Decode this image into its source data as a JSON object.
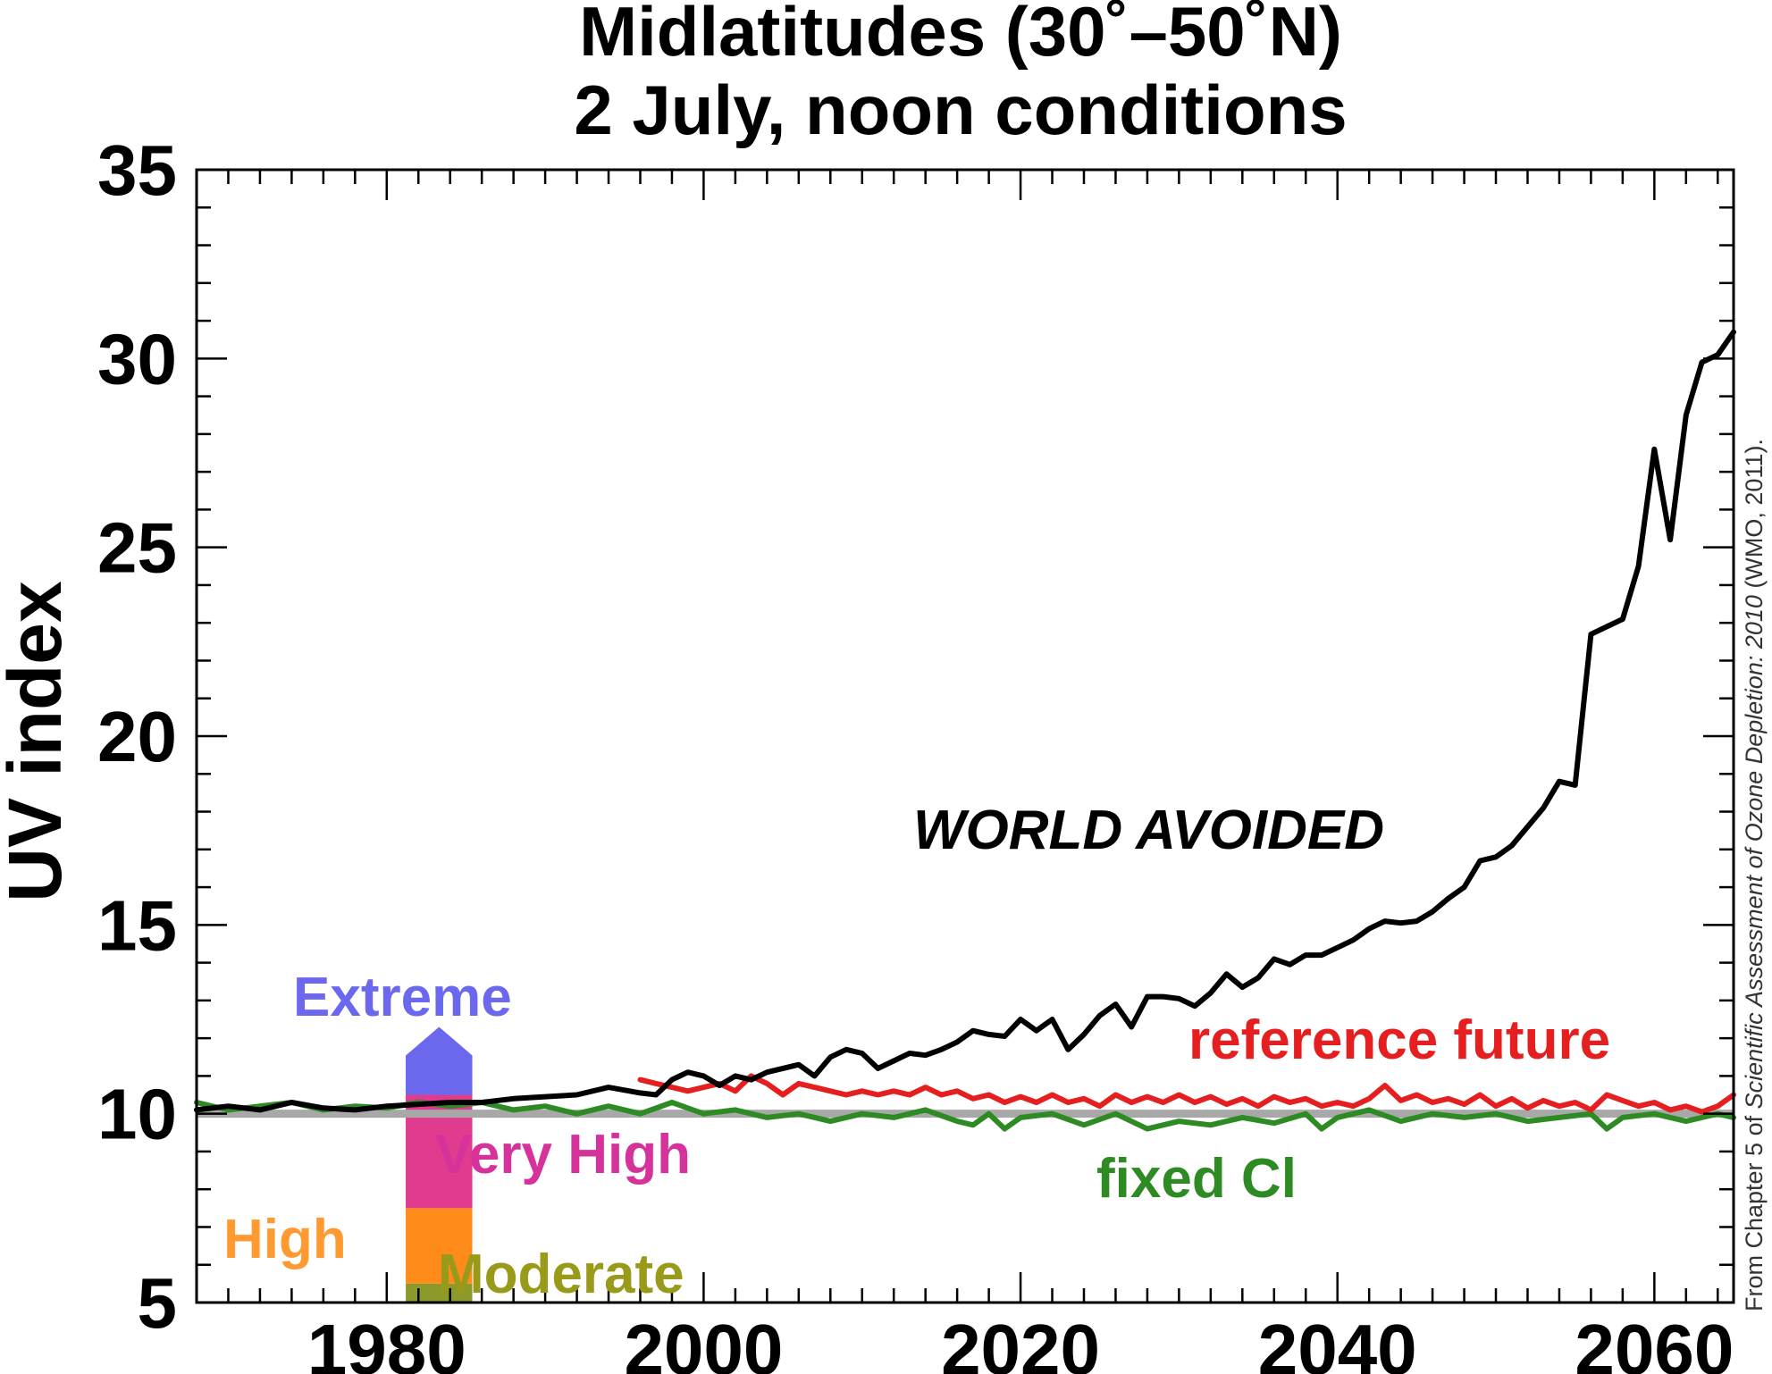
{
  "chart_data": {
    "type": "line",
    "title": "Midlatitudes (30˚–50˚N)",
    "subtitle": "2 July, noon conditions",
    "xlabel": "",
    "ylabel": "UV index",
    "xlim": [
      1968,
      2065
    ],
    "ylim": [
      5,
      35
    ],
    "xticks": [
      1980,
      2000,
      2020,
      2040,
      2060
    ],
    "yticks": [
      5,
      10,
      15,
      20,
      25,
      30,
      35
    ],
    "grid": false,
    "reference_line": {
      "y": 10,
      "color": "#a8a8a8"
    },
    "series": [
      {
        "name": "WORLD AVOIDED",
        "color": "#000000",
        "points": [
          [
            1968,
            10.1
          ],
          [
            1970,
            10.2
          ],
          [
            1972,
            10.1
          ],
          [
            1974,
            10.3
          ],
          [
            1976,
            10.15
          ],
          [
            1978,
            10.1
          ],
          [
            1980,
            10.2
          ],
          [
            1982,
            10.25
          ],
          [
            1984,
            10.3
          ],
          [
            1986,
            10.3
          ],
          [
            1988,
            10.4
          ],
          [
            1990,
            10.45
          ],
          [
            1992,
            10.5
          ],
          [
            1994,
            10.7
          ],
          [
            1996,
            10.55
          ],
          [
            1997,
            10.5
          ],
          [
            1998,
            10.9
          ],
          [
            1999,
            11.1
          ],
          [
            2000,
            11.0
          ],
          [
            2001,
            10.75
          ],
          [
            2002,
            11.0
          ],
          [
            2003,
            10.9
          ],
          [
            2004,
            11.1
          ],
          [
            2006,
            11.3
          ],
          [
            2007,
            11.0
          ],
          [
            2008,
            11.5
          ],
          [
            2009,
            11.7
          ],
          [
            2010,
            11.6
          ],
          [
            2011,
            11.2
          ],
          [
            2012,
            11.4
          ],
          [
            2013,
            11.6
          ],
          [
            2014,
            11.55
          ],
          [
            2015,
            11.7
          ],
          [
            2016,
            11.9
          ],
          [
            2017,
            12.2
          ],
          [
            2018,
            12.1
          ],
          [
            2019,
            12.05
          ],
          [
            2020,
            12.5
          ],
          [
            2021,
            12.2
          ],
          [
            2022,
            12.5
          ],
          [
            2023,
            11.7
          ],
          [
            2024,
            12.1
          ],
          [
            2025,
            12.6
          ],
          [
            2026,
            12.9
          ],
          [
            2027,
            12.3
          ],
          [
            2028,
            13.1
          ],
          [
            2029,
            13.1
          ],
          [
            2030,
            13.05
          ],
          [
            2031,
            12.85
          ],
          [
            2032,
            13.2
          ],
          [
            2033,
            13.7
          ],
          [
            2034,
            13.35
          ],
          [
            2035,
            13.6
          ],
          [
            2036,
            14.1
          ],
          [
            2037,
            13.95
          ],
          [
            2038,
            14.2
          ],
          [
            2039,
            14.2
          ],
          [
            2040,
            14.4
          ],
          [
            2041,
            14.6
          ],
          [
            2042,
            14.9
          ],
          [
            2043,
            15.1
          ],
          [
            2044,
            15.05
          ],
          [
            2045,
            15.1
          ],
          [
            2046,
            15.35
          ],
          [
            2047,
            15.7
          ],
          [
            2048,
            16.0
          ],
          [
            2049,
            16.7
          ],
          [
            2050,
            16.8
          ],
          [
            2051,
            17.1
          ],
          [
            2052,
            17.6
          ],
          [
            2053,
            18.1
          ],
          [
            2054,
            18.8
          ],
          [
            2055,
            18.7
          ],
          [
            2056,
            22.7
          ],
          [
            2057,
            22.9
          ],
          [
            2058,
            23.1
          ],
          [
            2059,
            24.5
          ],
          [
            2060,
            27.6
          ],
          [
            2061,
            25.2
          ],
          [
            2062,
            28.5
          ],
          [
            2063,
            29.9
          ],
          [
            2064,
            30.1
          ],
          [
            2065,
            30.7
          ]
        ]
      },
      {
        "name": "reference future",
        "color": "#e51f1f",
        "points": [
          [
            1996,
            10.9
          ],
          [
            1997,
            10.8
          ],
          [
            1998,
            10.7
          ],
          [
            1999,
            10.6
          ],
          [
            2000,
            10.7
          ],
          [
            2001,
            10.8
          ],
          [
            2002,
            10.6
          ],
          [
            2003,
            11.0
          ],
          [
            2004,
            10.8
          ],
          [
            2005,
            10.5
          ],
          [
            2006,
            10.8
          ],
          [
            2007,
            10.7
          ],
          [
            2008,
            10.6
          ],
          [
            2009,
            10.5
          ],
          [
            2010,
            10.6
          ],
          [
            2011,
            10.5
          ],
          [
            2012,
            10.6
          ],
          [
            2013,
            10.5
          ],
          [
            2014,
            10.7
          ],
          [
            2015,
            10.5
          ],
          [
            2016,
            10.6
          ],
          [
            2017,
            10.4
          ],
          [
            2018,
            10.5
          ],
          [
            2019,
            10.3
          ],
          [
            2020,
            10.45
          ],
          [
            2021,
            10.3
          ],
          [
            2022,
            10.5
          ],
          [
            2023,
            10.3
          ],
          [
            2024,
            10.4
          ],
          [
            2025,
            10.2
          ],
          [
            2026,
            10.5
          ],
          [
            2027,
            10.3
          ],
          [
            2028,
            10.45
          ],
          [
            2029,
            10.3
          ],
          [
            2030,
            10.5
          ],
          [
            2031,
            10.3
          ],
          [
            2032,
            10.45
          ],
          [
            2033,
            10.25
          ],
          [
            2034,
            10.4
          ],
          [
            2035,
            10.2
          ],
          [
            2036,
            10.45
          ],
          [
            2037,
            10.3
          ],
          [
            2038,
            10.4
          ],
          [
            2039,
            10.2
          ],
          [
            2040,
            10.3
          ],
          [
            2041,
            10.2
          ],
          [
            2042,
            10.4
          ],
          [
            2043,
            10.75
          ],
          [
            2044,
            10.35
          ],
          [
            2045,
            10.5
          ],
          [
            2046,
            10.3
          ],
          [
            2047,
            10.4
          ],
          [
            2048,
            10.25
          ],
          [
            2049,
            10.5
          ],
          [
            2050,
            10.2
          ],
          [
            2051,
            10.4
          ],
          [
            2052,
            10.15
          ],
          [
            2053,
            10.35
          ],
          [
            2054,
            10.2
          ],
          [
            2055,
            10.3
          ],
          [
            2056,
            10.1
          ],
          [
            2057,
            10.5
          ],
          [
            2058,
            10.35
          ],
          [
            2059,
            10.2
          ],
          [
            2060,
            10.3
          ],
          [
            2061,
            10.1
          ],
          [
            2062,
            10.2
          ],
          [
            2063,
            10.05
          ],
          [
            2064,
            10.2
          ],
          [
            2065,
            10.5
          ]
        ]
      },
      {
        "name": "fixed Cl",
        "color": "#2e8b23",
        "points": [
          [
            1968,
            10.3
          ],
          [
            1970,
            10.1
          ],
          [
            1972,
            10.2
          ],
          [
            1974,
            10.3
          ],
          [
            1976,
            10.1
          ],
          [
            1978,
            10.2
          ],
          [
            1980,
            10.15
          ],
          [
            1982,
            10.3
          ],
          [
            1984,
            10.2
          ],
          [
            1986,
            10.3
          ],
          [
            1988,
            10.1
          ],
          [
            1990,
            10.2
          ],
          [
            1992,
            10.0
          ],
          [
            1994,
            10.2
          ],
          [
            1996,
            10.0
          ],
          [
            1998,
            10.3
          ],
          [
            2000,
            10.0
          ],
          [
            2002,
            10.1
          ],
          [
            2004,
            9.9
          ],
          [
            2006,
            10.0
          ],
          [
            2008,
            9.8
          ],
          [
            2010,
            10.0
          ],
          [
            2012,
            9.9
          ],
          [
            2014,
            10.1
          ],
          [
            2016,
            9.8
          ],
          [
            2017,
            9.7
          ],
          [
            2018,
            10.0
          ],
          [
            2019,
            9.6
          ],
          [
            2020,
            9.9
          ],
          [
            2022,
            10.0
          ],
          [
            2024,
            9.7
          ],
          [
            2026,
            10.0
          ],
          [
            2028,
            9.6
          ],
          [
            2030,
            9.8
          ],
          [
            2032,
            9.7
          ],
          [
            2034,
            9.9
          ],
          [
            2036,
            9.75
          ],
          [
            2038,
            10.0
          ],
          [
            2039,
            9.6
          ],
          [
            2040,
            9.9
          ],
          [
            2042,
            10.1
          ],
          [
            2044,
            9.8
          ],
          [
            2046,
            10.0
          ],
          [
            2048,
            9.9
          ],
          [
            2050,
            10.0
          ],
          [
            2052,
            9.8
          ],
          [
            2054,
            9.9
          ],
          [
            2056,
            10.0
          ],
          [
            2057,
            9.6
          ],
          [
            2058,
            9.9
          ],
          [
            2060,
            10.0
          ],
          [
            2062,
            9.8
          ],
          [
            2064,
            10.0
          ],
          [
            2065,
            9.9
          ]
        ]
      }
    ],
    "uv_scale_bar": {
      "x_range": [
        1981.2,
        1985.4
      ],
      "segments": [
        {
          "label": "Moderate",
          "from": 5.0,
          "to": 5.5,
          "color": "#8c9a2c"
        },
        {
          "label": "High",
          "from": 5.5,
          "to": 7.5,
          "color": "#ff8c1a"
        },
        {
          "label": "Very High",
          "from": 7.5,
          "to": 10.5,
          "color": "#e03b8e"
        },
        {
          "label": "Extreme",
          "from": 10.5,
          "to": 12.3,
          "color": "#6b68ee"
        }
      ]
    },
    "annotations": {
      "world_avoided": {
        "text": "WORLD AVOIDED",
        "color": "#000000"
      },
      "reference_future": {
        "text": "reference future",
        "color": "#e51f1f"
      },
      "fixed_cl": {
        "text": "fixed Cl",
        "color": "#2e8b23"
      },
      "extreme": {
        "text": "Extreme",
        "color": "#6b68ee"
      },
      "very_high": {
        "text": "Very High",
        "color": "#d6329b"
      },
      "high": {
        "text": "High",
        "color": "#ff9a33"
      },
      "moderate": {
        "text": "Moderate",
        "color": "#9a9a1a"
      }
    }
  },
  "credit": {
    "prefix": "From Chapter 5 of ",
    "italic": "Scientific Assessment of Ozone Depletion: 2010",
    "suffix": " (WMO, 2011)."
  }
}
